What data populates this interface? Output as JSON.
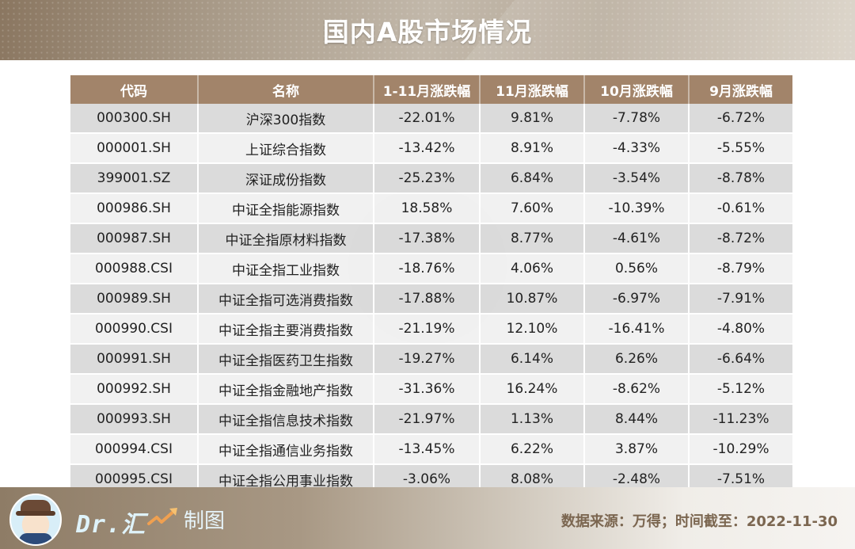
{
  "header": {
    "title": "国内A股市场情况"
  },
  "table": {
    "columns": [
      "代码",
      "名称",
      "1-11月涨跌幅",
      "11月涨跌幅",
      "10月涨跌幅",
      "9月涨跌幅"
    ],
    "rows": [
      [
        "000300.SH",
        "沪深300指数",
        "-22.01%",
        "9.81%",
        "-7.78%",
        "-6.72%"
      ],
      [
        "000001.SH",
        "上证综合指数",
        "-13.42%",
        "8.91%",
        "-4.33%",
        "-5.55%"
      ],
      [
        "399001.SZ",
        "深证成份指数",
        "-25.23%",
        "6.84%",
        "-3.54%",
        "-8.78%"
      ],
      [
        "000986.SH",
        "中证全指能源指数",
        "18.58%",
        "7.60%",
        "-10.39%",
        "-0.61%"
      ],
      [
        "000987.SH",
        "中证全指原材料指数",
        "-17.38%",
        "8.77%",
        "-4.61%",
        "-8.72%"
      ],
      [
        "000988.CSI",
        "中证全指工业指数",
        "-18.76%",
        "4.06%",
        "0.56%",
        "-8.79%"
      ],
      [
        "000989.SH",
        "中证全指可选消费指数",
        "-17.88%",
        "10.87%",
        "-6.97%",
        "-7.91%"
      ],
      [
        "000990.CSI",
        "中证全指主要消费指数",
        "-21.19%",
        "12.10%",
        "-16.41%",
        "-4.80%"
      ],
      [
        "000991.SH",
        "中证全指医药卫生指数",
        "-19.27%",
        "6.14%",
        "6.26%",
        "-6.64%"
      ],
      [
        "000992.SH",
        "中证全指金融地产指数",
        "-31.36%",
        "16.24%",
        "-8.62%",
        "-5.12%"
      ],
      [
        "000993.SH",
        "中证全指信息技术指数",
        "-21.97%",
        "1.13%",
        "8.44%",
        "-11.23%"
      ],
      [
        "000994.CSI",
        "中证全指通信业务指数",
        "-13.45%",
        "6.22%",
        "3.87%",
        "-10.29%"
      ],
      [
        "000995.CSI",
        "中证全指公用事业指数",
        "-3.06%",
        "8.08%",
        "-2.48%",
        "-7.51%"
      ]
    ]
  },
  "footer": {
    "brand": "Dr.汇",
    "trend_icon": "trend-up-arrow-icon",
    "made_label": "制图",
    "source": "数据来源：万得；时间截至：2022-11-30"
  },
  "colors": {
    "header_bg": "#a2846a",
    "row_odd": "#d8d8d8",
    "row_even": "#f0f0f0",
    "source_text": "#7b6650"
  }
}
